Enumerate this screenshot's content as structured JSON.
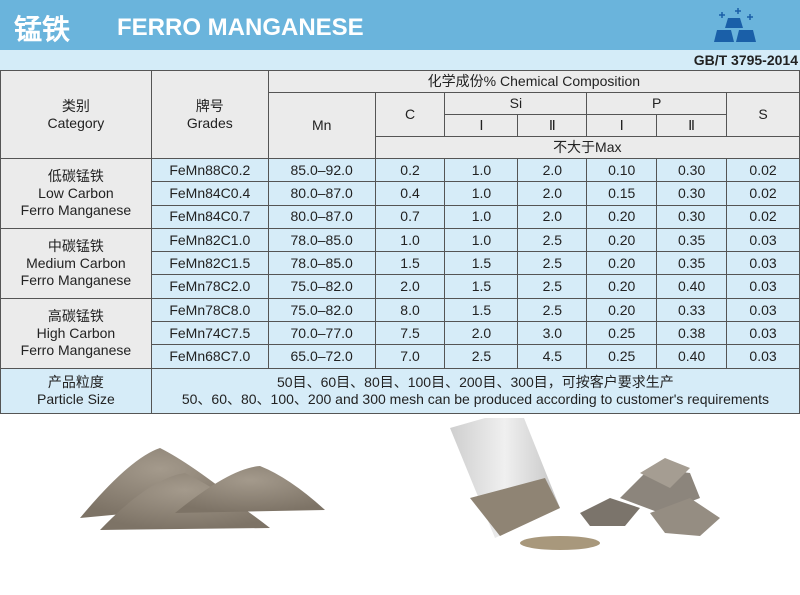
{
  "header": {
    "title_cn": "锰铁",
    "title_en": "FERRO MANGANESE",
    "logo_icon": "metal-ingots-icon",
    "standard": "GB/T 3795-2014"
  },
  "colors": {
    "banner": "#6ab4dc",
    "subbar": "#d4ecf8",
    "header_cell": "#ebebeb",
    "data_cell": "#d6ecf8"
  },
  "table": {
    "category_cn": "类别",
    "category_en": "Category",
    "grades_cn": "牌号",
    "grades_en": "Grades",
    "chem": "化学成份% Chemical Composition",
    "mn": "Mn",
    "c": "C",
    "si": "Si",
    "p": "P",
    "s": "S",
    "one": "Ⅰ",
    "two": "Ⅱ",
    "max": "不大于Max",
    "groups": [
      {
        "cn": "低碳锰铁",
        "en1": "Low Carbon",
        "en2": "Ferro Manganese",
        "rows": [
          [
            "FeMn88C0.2",
            "85.0–92.0",
            "0.2",
            "1.0",
            "2.0",
            "0.10",
            "0.30",
            "0.02"
          ],
          [
            "FeMn84C0.4",
            "80.0–87.0",
            "0.4",
            "1.0",
            "2.0",
            "0.15",
            "0.30",
            "0.02"
          ],
          [
            "FeMn84C0.7",
            "80.0–87.0",
            "0.7",
            "1.0",
            "2.0",
            "0.20",
            "0.30",
            "0.02"
          ]
        ]
      },
      {
        "cn": "中碳锰铁",
        "en1": "Medium Carbon",
        "en2": "Ferro Manganese",
        "rows": [
          [
            "FeMn82C1.0",
            "78.0–85.0",
            "1.0",
            "1.0",
            "2.5",
            "0.20",
            "0.35",
            "0.03"
          ],
          [
            "FeMn82C1.5",
            "78.0–85.0",
            "1.5",
            "1.5",
            "2.5",
            "0.20",
            "0.35",
            "0.03"
          ],
          [
            "FeMn78C2.0",
            "75.0–82.0",
            "2.0",
            "1.5",
            "2.5",
            "0.20",
            "0.40",
            "0.03"
          ]
        ]
      },
      {
        "cn": "高碳锰铁",
        "en1": "High Carbon",
        "en2": "Ferro Manganese",
        "rows": [
          [
            "FeMn78C8.0",
            "75.0–82.0",
            "8.0",
            "1.5",
            "2.5",
            "0.20",
            "0.33",
            "0.03"
          ],
          [
            "FeMn74C7.5",
            "70.0–77.0",
            "7.5",
            "2.0",
            "3.0",
            "0.25",
            "0.38",
            "0.03"
          ],
          [
            "FeMn68C7.0",
            "65.0–72.0",
            "7.0",
            "2.5",
            "4.5",
            "0.25",
            "0.40",
            "0.03"
          ]
        ]
      }
    ],
    "particle_cn": "产品粒度",
    "particle_en": "Particle Size",
    "particle_text_cn": "50目、60目、80目、100目、200目、300目，可按客户要求生产",
    "particle_text_en": "50、60、80、100、200 and 300 mesh can be produced according to customer's requirements"
  }
}
